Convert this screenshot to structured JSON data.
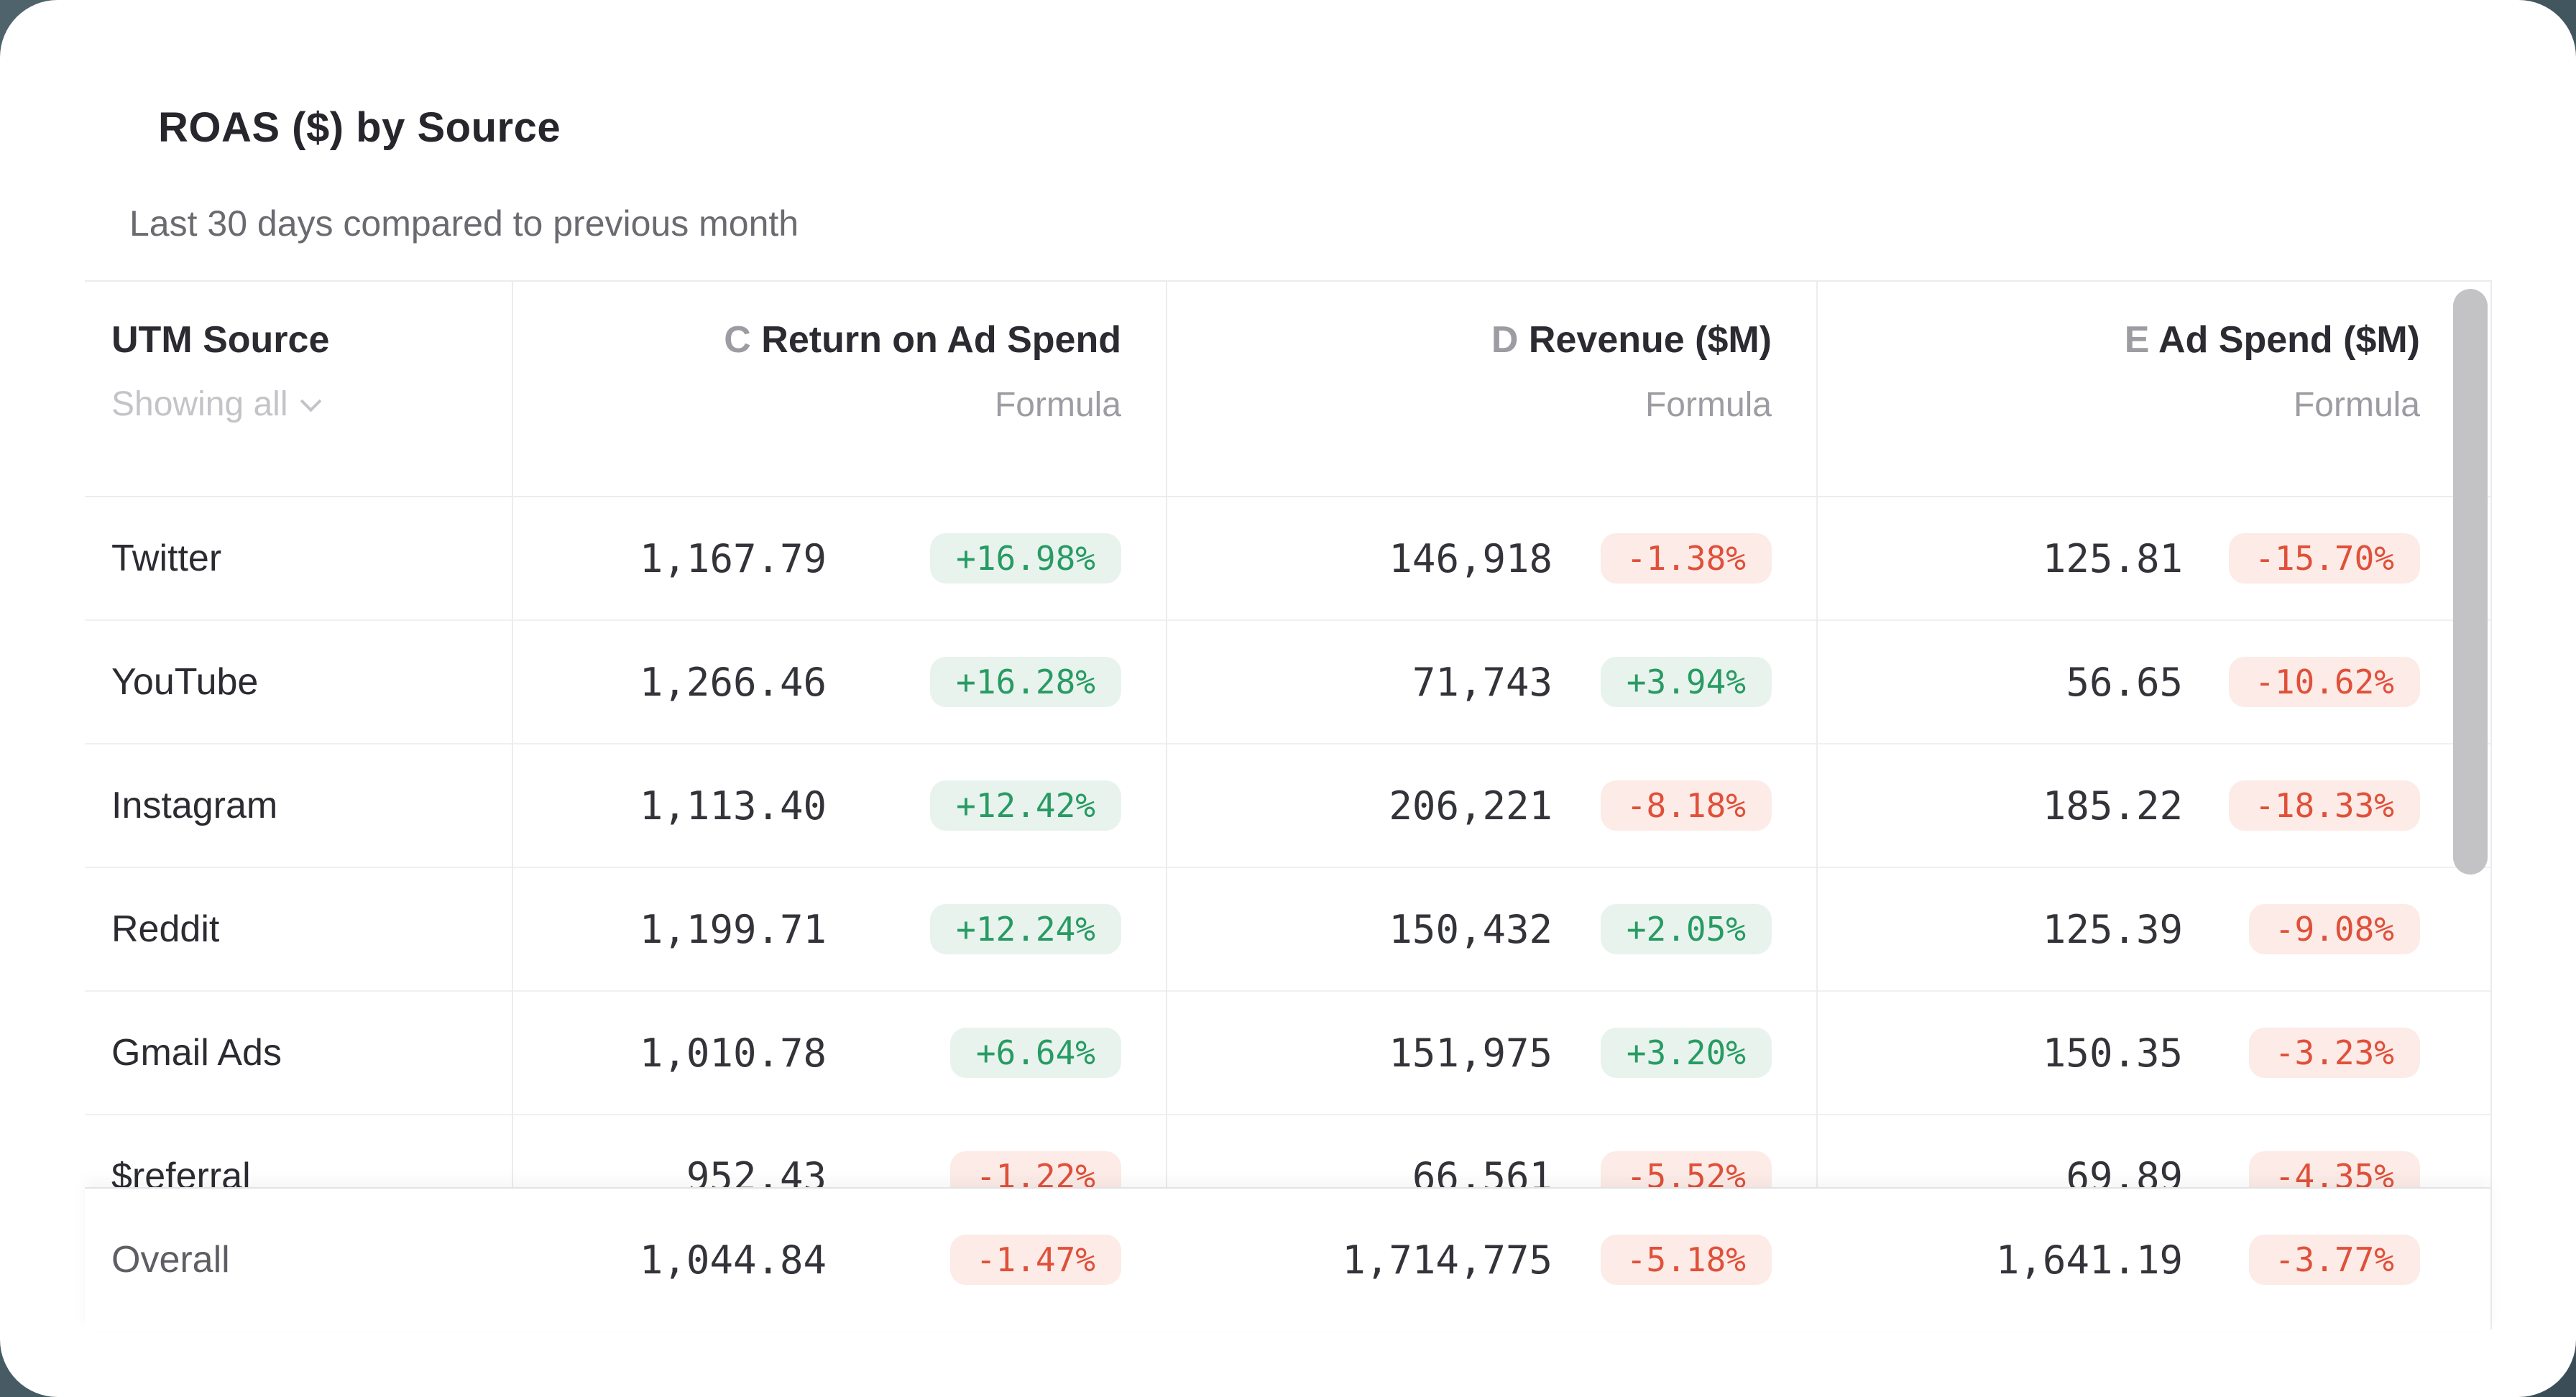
{
  "card": {
    "title": "ROAS ($) by Source",
    "subtitle": "Last 30 days compared to previous month"
  },
  "table": {
    "source_header": {
      "label": "UTM Source",
      "filter_label": "Showing all"
    },
    "columns": [
      {
        "letter": "C",
        "label": "Return on Ad Spend",
        "sub": "Formula"
      },
      {
        "letter": "D",
        "label": "Revenue ($M)",
        "sub": "Formula"
      },
      {
        "letter": "E",
        "label": "Ad Spend ($M)",
        "sub": "Formula"
      }
    ],
    "rows": [
      {
        "source": "Twitter",
        "roas": "1,167.79",
        "roas_delta": "+16.98%",
        "revenue": "146,918",
        "revenue_delta": "-1.38%",
        "ad_spend": "125.81",
        "ad_spend_delta": "-15.70%"
      },
      {
        "source": "YouTube",
        "roas": "1,266.46",
        "roas_delta": "+16.28%",
        "revenue": "71,743",
        "revenue_delta": "+3.94%",
        "ad_spend": "56.65",
        "ad_spend_delta": "-10.62%"
      },
      {
        "source": "Instagram",
        "roas": "1,113.40",
        "roas_delta": "+12.42%",
        "revenue": "206,221",
        "revenue_delta": "-8.18%",
        "ad_spend": "185.22",
        "ad_spend_delta": "-18.33%"
      },
      {
        "source": "Reddit",
        "roas": "1,199.71",
        "roas_delta": "+12.24%",
        "revenue": "150,432",
        "revenue_delta": "+2.05%",
        "ad_spend": "125.39",
        "ad_spend_delta": "-9.08%"
      },
      {
        "source": "Gmail Ads",
        "roas": "1,010.78",
        "roas_delta": "+6.64%",
        "revenue": "151,975",
        "revenue_delta": "+3.20%",
        "ad_spend": "150.35",
        "ad_spend_delta": "-3.23%"
      },
      {
        "source": "$referral",
        "roas": "952.43",
        "roas_delta": "-1.22%",
        "revenue": "66,561",
        "revenue_delta": "-5.52%",
        "ad_spend": "69.89",
        "ad_spend_delta": "-4.35%"
      }
    ],
    "footer": {
      "source": "Overall",
      "roas": "1,044.84",
      "roas_delta": "-1.47%",
      "revenue": "1,714,775",
      "revenue_delta": "-5.18%",
      "ad_spend": "1,641.19",
      "ad_spend_delta": "-3.77%"
    }
  },
  "colors": {
    "backdrop_start": "#4e636b",
    "backdrop_end": "#3b4e58",
    "card_bg": "#ffffff",
    "title_text": "#26262c",
    "subtitle_text": "#6a6a70",
    "header_text": "#2b2b31",
    "muted_text": "#9c9ca2",
    "faint_text": "#c4c4c8",
    "number_text": "#33333a",
    "up_text": "#279b63",
    "up_bg": "#e9f3ee",
    "down_text": "#e0503a",
    "down_bg": "#fcebe6",
    "line": "#ececef",
    "scrollbar_thumb": "#c3c3c5"
  }
}
